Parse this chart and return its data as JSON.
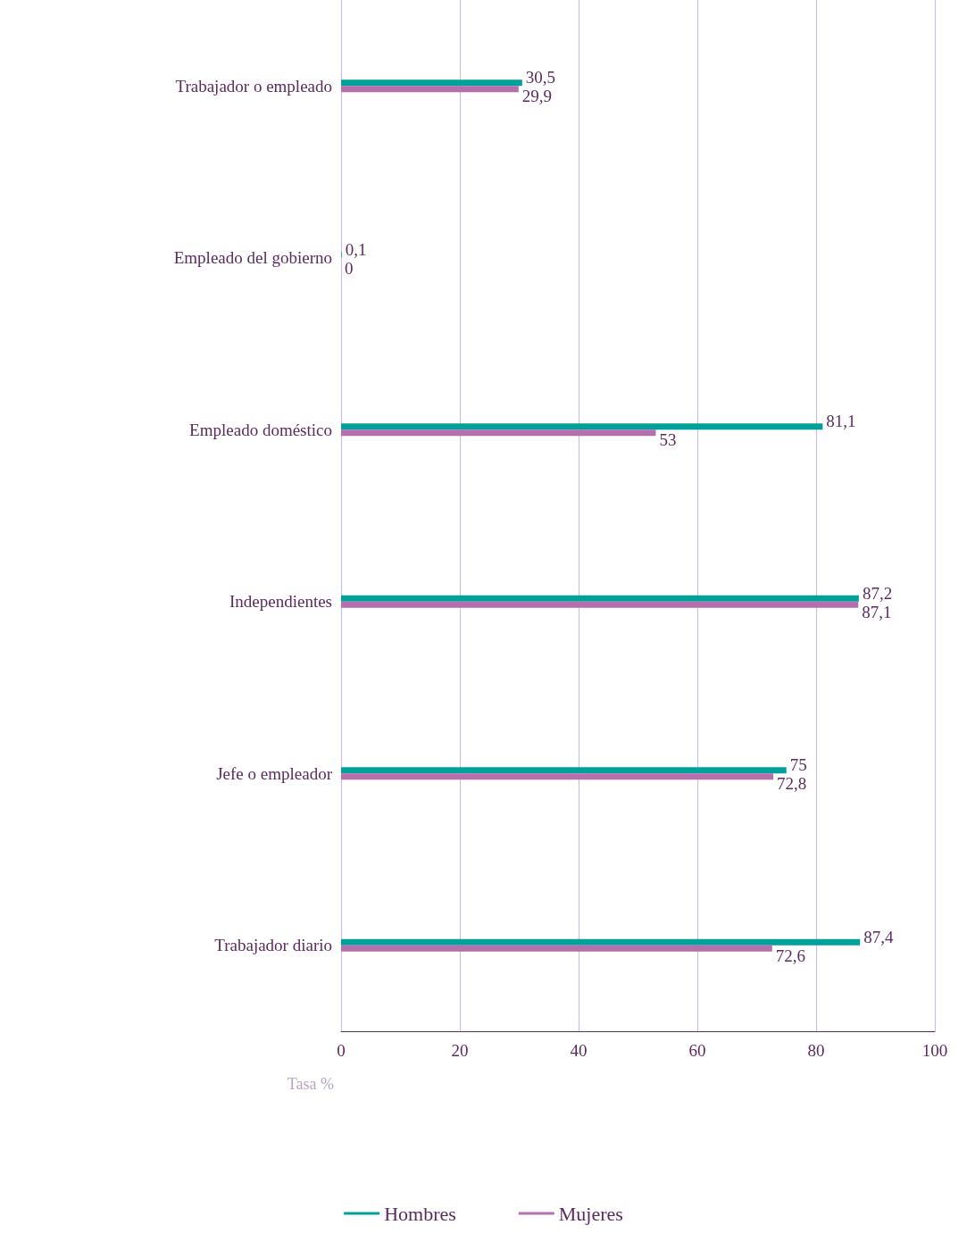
{
  "chart_data": {
    "type": "bar",
    "orientation": "horizontal",
    "categories": [
      "Trabajador o empleado",
      "Empleado del gobierno",
      "Empleado doméstico",
      "Independientes",
      "Jefe o empleador",
      "Trabajador diario"
    ],
    "series": [
      {
        "name": "Hombres",
        "color": "#00a19a",
        "values": [
          30.5,
          0.1,
          81.1,
          87.2,
          75,
          87.4
        ],
        "value_labels": [
          "30,5",
          "0,1",
          "81,1",
          "87,2",
          "75",
          "87,4"
        ]
      },
      {
        "name": "Mujeres",
        "color": "#b56fac",
        "values": [
          29.9,
          0,
          53,
          87.1,
          72.8,
          72.6
        ],
        "value_labels": [
          "29,9",
          "0",
          "53",
          "87,1",
          "72,8",
          "72,6"
        ]
      }
    ],
    "xlabel": "Tasa %",
    "xlim": [
      0,
      100
    ],
    "xticks": [
      0,
      20,
      40,
      60,
      80,
      100
    ],
    "grid": "x",
    "legend": "bottom"
  }
}
